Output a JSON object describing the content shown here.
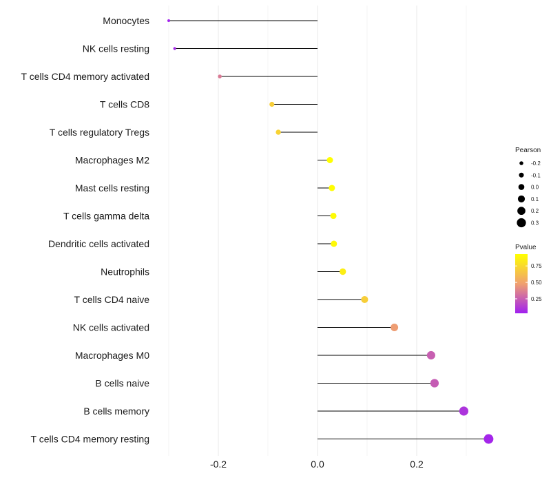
{
  "chart_data": {
    "type": "lollipop",
    "title": "",
    "xlabel": "",
    "ylabel": "",
    "xlim": [
      -0.3,
      0.34
    ],
    "xticks": [
      -0.2,
      0.0,
      0.2
    ],
    "x_tick_labels": [
      "-0.2",
      "0.0",
      "0.2"
    ],
    "categories": [
      "Monocytes",
      "NK cells resting",
      "T cells CD4 memory activated",
      "T cells CD8",
      "T cells regulatory  Tregs ",
      "Macrophages M2",
      "Mast cells resting",
      "T cells gamma delta",
      "Dendritic cells activated",
      "Neutrophils",
      "T cells CD4 naive",
      "NK cells activated",
      "Macrophages M0",
      "B cells naive",
      "B cells memory",
      "T cells CD4 memory resting"
    ],
    "pearson": [
      -0.3,
      -0.288,
      -0.197,
      -0.092,
      -0.079,
      0.025,
      0.029,
      0.032,
      0.033,
      0.051,
      0.095,
      0.155,
      0.229,
      0.236,
      0.295,
      0.345
    ],
    "pvalue": [
      0.04,
      0.06,
      0.35,
      0.7,
      0.72,
      0.93,
      0.92,
      0.91,
      0.9,
      0.85,
      0.7,
      0.47,
      0.25,
      0.24,
      0.1,
      0.05
    ],
    "grid": true,
    "legend": {
      "position": "right",
      "size_title": "Pearson",
      "size_entries": [
        "-0.2",
        "-0.1",
        "0.0",
        "0.1",
        "0.2",
        "0.3"
      ],
      "size_values": [
        -0.2,
        -0.1,
        0.0,
        0.1,
        0.2,
        0.3
      ],
      "color_title": "Pvalue",
      "color_ticks": [
        "0.75",
        "0.50",
        "0.25"
      ],
      "color_tick_values": [
        0.75,
        0.5,
        0.25
      ],
      "color_range": [
        0.03,
        0.93
      ],
      "color_low": "#a020f0",
      "color_mid": "#f0a070",
      "color_high": "#ffff00"
    },
    "colors": {
      "stem": "#000000",
      "grid": "#ececec",
      "size_key": "#000000"
    }
  }
}
